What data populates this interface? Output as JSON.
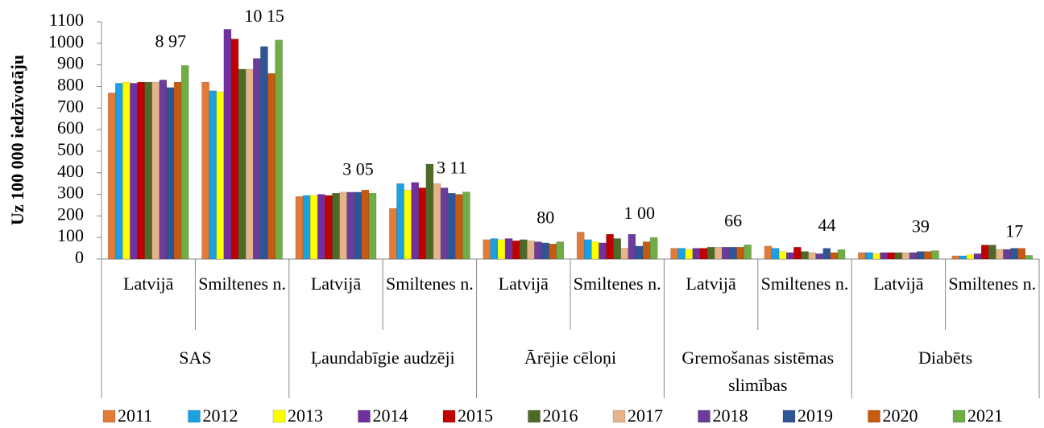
{
  "chart_data": {
    "type": "bar",
    "ylabel": "Uz 100 000 iedzīvotāju",
    "categories": [
      "Latvijā",
      "Smiltenes n.",
      "Latvijā",
      "Smiltenes n.",
      "Latvijā",
      "Smiltenes n.",
      "Latvijā",
      "Smiltenes n.",
      "Latvijā",
      "Smiltenes n."
    ],
    "groups": [
      "SAS",
      "Ļaundabīgie audzēji",
      "Ārējie cēloņi",
      "Gremošanas sistēmas slimības",
      "Diabēts"
    ],
    "ylim": [
      0,
      1100
    ],
    "yticks": [
      0,
      100,
      200,
      300,
      400,
      500,
      600,
      700,
      800,
      900,
      1000,
      1100
    ],
    "grid": false,
    "legend": "bottom",
    "series": [
      {
        "name": "2011",
        "color": "#e07b39",
        "values": [
          770,
          820,
          290,
          235,
          90,
          125,
          50,
          60,
          30,
          15
        ]
      },
      {
        "name": "2012",
        "color": "#1ba1e2",
        "values": [
          815,
          780,
          295,
          350,
          95,
          90,
          50,
          50,
          30,
          15
        ]
      },
      {
        "name": "2013",
        "color": "#ffff00",
        "values": [
          820,
          775,
          295,
          320,
          90,
          80,
          45,
          35,
          25,
          20
        ]
      },
      {
        "name": "2014",
        "color": "#7030a0",
        "values": [
          815,
          1065,
          300,
          355,
          95,
          75,
          50,
          30,
          30,
          25
        ]
      },
      {
        "name": "2015",
        "color": "#c00000",
        "values": [
          820,
          1020,
          295,
          330,
          85,
          115,
          50,
          55,
          30,
          65
        ]
      },
      {
        "name": "2016",
        "color": "#4e6a28",
        "values": [
          820,
          880,
          305,
          440,
          90,
          95,
          55,
          35,
          30,
          65
        ]
      },
      {
        "name": "2017",
        "color": "#e6b48a",
        "values": [
          820,
          880,
          310,
          350,
          85,
          50,
          55,
          30,
          30,
          45
        ]
      },
      {
        "name": "2018",
        "color": "#6a3d9a",
        "values": [
          830,
          930,
          310,
          330,
          80,
          115,
          55,
          25,
          30,
          45
        ]
      },
      {
        "name": "2019",
        "color": "#2f5597",
        "values": [
          795,
          985,
          310,
          305,
          75,
          60,
          55,
          50,
          35,
          50
        ]
      },
      {
        "name": "2020",
        "color": "#c55a11",
        "values": [
          820,
          860,
          320,
          300,
          70,
          80,
          55,
          30,
          35,
          50
        ]
      },
      {
        "name": "2021",
        "color": "#70ad47",
        "values": [
          897,
          1015,
          305,
          311,
          80,
          100,
          66,
          44,
          39,
          17
        ],
        "value_labels": [
          "8 97",
          "10 15",
          "3 05",
          "3 11",
          "80",
          "1 00",
          "66",
          "44",
          "39",
          "17"
        ]
      }
    ]
  }
}
